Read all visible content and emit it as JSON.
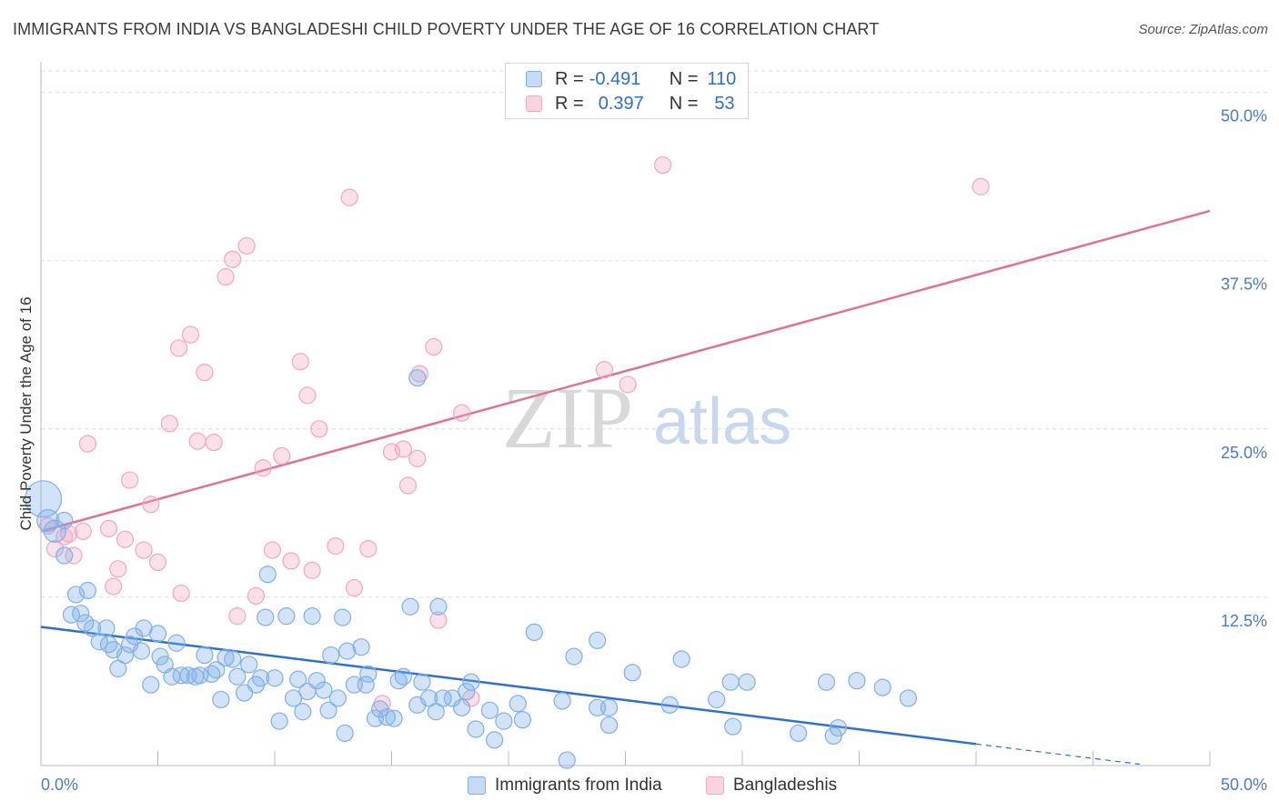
{
  "title": "IMMIGRANTS FROM INDIA VS BANGLADESHI CHILD POVERTY UNDER THE AGE OF 16 CORRELATION CHART",
  "source": "Source: ZipAtlas.com",
  "watermark": {
    "zip": "ZIP",
    "atlas": "atlas"
  },
  "colors": {
    "blue": "#7fb0e8",
    "blue_line": "#2f6fd1",
    "pink": "#f2a7c0",
    "pink_line": "#e07098",
    "tick_text": "#4a7cc7"
  },
  "legend": {
    "row1": {
      "r_label": "R =",
      "r_value": "-0.491",
      "n_label": "N =",
      "n_value": "110"
    },
    "row2": {
      "r_label": "R =",
      "r_value": "0.397",
      "n_label": "N =",
      "n_value": "53"
    }
  },
  "bottom_legend": {
    "series1": "Immigrants from India",
    "series2": "Bangladeshis"
  },
  "chart_data": {
    "type": "scatter",
    "title": "IMMIGRANTS FROM INDIA VS BANGLADESHI CHILD POVERTY UNDER THE AGE OF 16 CORRELATION CHART",
    "xlabel": "",
    "ylabel": "Child Poverty Under the Age of 16",
    "xlim": [
      0,
      50
    ],
    "ylim": [
      0,
      52
    ],
    "x_tick_labels": [
      "0.0%",
      "50.0%"
    ],
    "y_ticks": [
      12.5,
      25.0,
      37.5,
      50.0
    ],
    "y_tick_labels": [
      "12.5%",
      "25.0%",
      "37.5%",
      "50.0%"
    ],
    "grid": true,
    "series": [
      {
        "name": "Immigrants from India",
        "color": "#7fb0e8",
        "trend": {
          "x0": 0,
          "y0": 10.3,
          "x1": 40,
          "y1": 1.6,
          "dash_to_x": 47,
          "dash_y": 0.1
        },
        "points": [
          [
            0.1,
            19.8
          ],
          [
            0.3,
            18.2
          ],
          [
            0.6,
            17.4
          ],
          [
            1.0,
            15.6
          ],
          [
            1.0,
            18.2
          ],
          [
            1.3,
            11.2
          ],
          [
            1.5,
            12.7
          ],
          [
            1.7,
            11.3
          ],
          [
            1.9,
            10.6
          ],
          [
            2.0,
            13.0
          ],
          [
            2.2,
            10.2
          ],
          [
            2.5,
            9.2
          ],
          [
            2.8,
            10.2
          ],
          [
            2.9,
            9.0
          ],
          [
            3.1,
            8.6
          ],
          [
            3.3,
            7.2
          ],
          [
            3.6,
            8.2
          ],
          [
            3.8,
            9.0
          ],
          [
            4.0,
            9.6
          ],
          [
            4.3,
            8.5
          ],
          [
            4.4,
            10.2
          ],
          [
            4.7,
            6.0
          ],
          [
            5.0,
            9.8
          ],
          [
            5.1,
            8.1
          ],
          [
            5.3,
            7.5
          ],
          [
            5.6,
            6.6
          ],
          [
            5.8,
            9.1
          ],
          [
            6.0,
            6.7
          ],
          [
            6.3,
            6.7
          ],
          [
            6.6,
            6.6
          ],
          [
            6.8,
            6.7
          ],
          [
            7.0,
            8.2
          ],
          [
            7.3,
            6.8
          ],
          [
            7.5,
            7.1
          ],
          [
            7.7,
            4.9
          ],
          [
            7.9,
            8.0
          ],
          [
            8.2,
            7.9
          ],
          [
            8.4,
            6.6
          ],
          [
            8.7,
            5.4
          ],
          [
            8.9,
            7.5
          ],
          [
            9.2,
            6.0
          ],
          [
            9.4,
            6.5
          ],
          [
            9.6,
            11.0
          ],
          [
            9.7,
            14.2
          ],
          [
            10.0,
            6.5
          ],
          [
            10.2,
            3.3
          ],
          [
            10.5,
            11.1
          ],
          [
            10.8,
            5.0
          ],
          [
            11.0,
            6.4
          ],
          [
            11.2,
            4.0
          ],
          [
            11.4,
            5.5
          ],
          [
            11.6,
            11.1
          ],
          [
            11.8,
            6.3
          ],
          [
            12.1,
            5.6
          ],
          [
            12.3,
            4.1
          ],
          [
            12.4,
            8.2
          ],
          [
            12.7,
            5.0
          ],
          [
            12.9,
            11.0
          ],
          [
            13.0,
            2.4
          ],
          [
            13.1,
            8.5
          ],
          [
            13.4,
            6.0
          ],
          [
            13.7,
            8.8
          ],
          [
            13.9,
            6.0
          ],
          [
            14.0,
            6.8
          ],
          [
            14.3,
            3.5
          ],
          [
            14.5,
            4.2
          ],
          [
            14.8,
            3.6
          ],
          [
            15.1,
            3.5
          ],
          [
            15.3,
            6.3
          ],
          [
            15.5,
            6.6
          ],
          [
            15.8,
            11.8
          ],
          [
            16.1,
            4.5
          ],
          [
            16.3,
            6.2
          ],
          [
            16.6,
            5.0
          ],
          [
            16.9,
            4.0
          ],
          [
            17.0,
            11.8
          ],
          [
            17.2,
            5.0
          ],
          [
            17.6,
            5.0
          ],
          [
            18.0,
            4.3
          ],
          [
            18.2,
            5.5
          ],
          [
            18.4,
            6.2
          ],
          [
            18.6,
            2.7
          ],
          [
            19.2,
            4.1
          ],
          [
            19.4,
            1.9
          ],
          [
            19.8,
            3.3
          ],
          [
            20.4,
            4.6
          ],
          [
            20.6,
            3.4
          ],
          [
            21.1,
            9.9
          ],
          [
            22.3,
            4.8
          ],
          [
            22.5,
            0.4
          ],
          [
            22.8,
            8.1
          ],
          [
            23.8,
            4.3
          ],
          [
            23.8,
            9.3
          ],
          [
            24.3,
            4.3
          ],
          [
            24.3,
            3.0
          ],
          [
            25.3,
            6.9
          ],
          [
            26.9,
            4.5
          ],
          [
            27.4,
            7.9
          ],
          [
            28.9,
            4.9
          ],
          [
            29.5,
            6.2
          ],
          [
            29.6,
            2.9
          ],
          [
            30.2,
            6.2
          ],
          [
            32.4,
            2.4
          ],
          [
            33.6,
            6.2
          ],
          [
            33.9,
            2.2
          ],
          [
            34.1,
            2.8
          ],
          [
            34.9,
            6.3
          ],
          [
            36.0,
            5.8
          ],
          [
            37.1,
            5.0
          ],
          [
            16.1,
            28.8
          ]
        ]
      },
      {
        "name": "Bangladeshis",
        "color": "#f2a7c0",
        "trend": {
          "x0": 0,
          "y0": 17.4,
          "x1": 50,
          "y1": 41.2
        },
        "points": [
          [
            0.3,
            17.8
          ],
          [
            0.6,
            16.1
          ],
          [
            1.0,
            17.0
          ],
          [
            1.2,
            17.2
          ],
          [
            1.4,
            15.6
          ],
          [
            1.8,
            17.4
          ],
          [
            2.0,
            23.9
          ],
          [
            2.9,
            17.6
          ],
          [
            3.1,
            13.3
          ],
          [
            3.3,
            14.6
          ],
          [
            3.6,
            16.8
          ],
          [
            3.8,
            21.2
          ],
          [
            4.4,
            16.0
          ],
          [
            4.7,
            19.4
          ],
          [
            5.0,
            15.1
          ],
          [
            5.5,
            25.4
          ],
          [
            5.9,
            31.0
          ],
          [
            6.0,
            12.8
          ],
          [
            6.4,
            32.0
          ],
          [
            6.7,
            24.1
          ],
          [
            7.0,
            29.2
          ],
          [
            7.4,
            24.0
          ],
          [
            7.9,
            36.3
          ],
          [
            8.2,
            37.6
          ],
          [
            8.4,
            11.1
          ],
          [
            8.8,
            38.6
          ],
          [
            9.2,
            12.6
          ],
          [
            9.5,
            22.1
          ],
          [
            9.9,
            16.0
          ],
          [
            10.3,
            23.0
          ],
          [
            10.7,
            15.2
          ],
          [
            11.1,
            30.0
          ],
          [
            11.4,
            27.5
          ],
          [
            11.6,
            14.5
          ],
          [
            11.9,
            25.0
          ],
          [
            12.6,
            16.3
          ],
          [
            13.2,
            42.2
          ],
          [
            13.4,
            13.2
          ],
          [
            14.0,
            16.1
          ],
          [
            14.6,
            4.6
          ],
          [
            15.0,
            23.3
          ],
          [
            15.5,
            23.5
          ],
          [
            15.7,
            20.8
          ],
          [
            16.1,
            22.8
          ],
          [
            16.2,
            29.1
          ],
          [
            16.8,
            31.1
          ],
          [
            17.0,
            10.8
          ],
          [
            18.0,
            26.2
          ],
          [
            18.4,
            5.0
          ],
          [
            24.1,
            29.4
          ],
          [
            25.1,
            28.3
          ],
          [
            26.6,
            44.6
          ],
          [
            40.2,
            43.0
          ]
        ]
      }
    ]
  }
}
